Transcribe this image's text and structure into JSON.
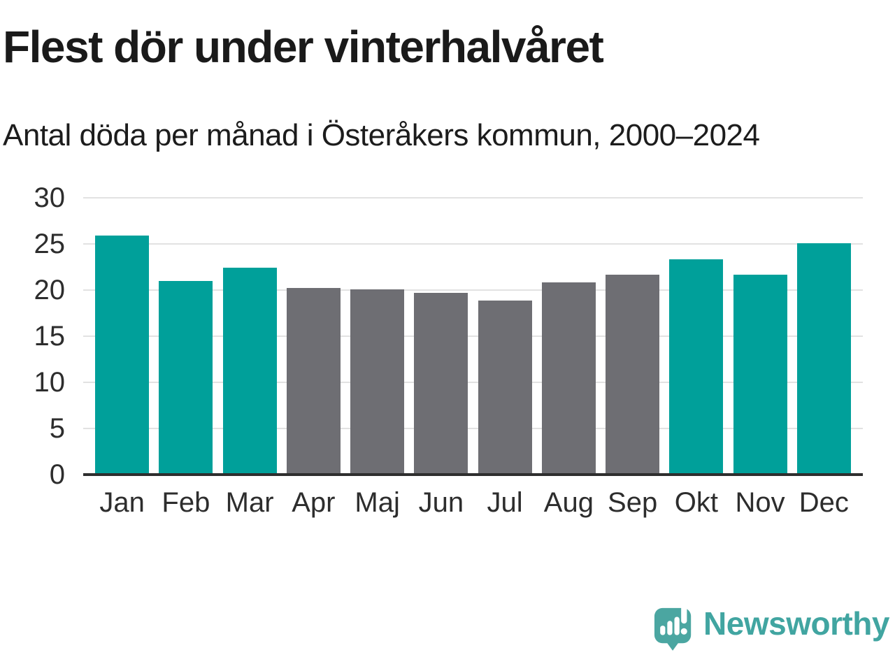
{
  "header": {
    "title": "Flest dör under vinterhalvåret",
    "subtitle": "Antal döda per månad i Österåkers kommun, 2000–2024"
  },
  "chart_data": {
    "type": "bar",
    "title": "Flest dör under vinterhalvåret",
    "subtitle": "Antal döda per månad i Österåkers kommun, 2000–2024",
    "categories": [
      "Jan",
      "Feb",
      "Mar",
      "Apr",
      "Maj",
      "Jun",
      "Jul",
      "Aug",
      "Sep",
      "Okt",
      "Nov",
      "Dec"
    ],
    "values": [
      25.9,
      21.0,
      22.4,
      20.2,
      20.1,
      19.7,
      18.9,
      20.8,
      21.7,
      23.3,
      21.7,
      25.1
    ],
    "bar_color_keys": [
      "winter",
      "winter",
      "winter",
      "summer",
      "summer",
      "summer",
      "summer",
      "summer",
      "summer",
      "winter",
      "winter",
      "winter"
    ],
    "colors": {
      "winter": "#00A09A",
      "summer": "#6E6E73",
      "gridline": "#E2E2E2",
      "axis_line": "#2E2E2E",
      "tick_label": "#2D2D2D"
    },
    "ylim": [
      0,
      30
    ],
    "yticks": [
      0,
      5,
      10,
      15,
      20,
      25,
      30
    ],
    "grid": true,
    "xlabel": "",
    "ylabel": "",
    "legend": "none"
  },
  "footer": {
    "brand": "Newsworthy",
    "brand_color": "#41A5A1",
    "icon": "newsworthy-speech-bubble-bar-chart-icon",
    "icon_color": "#4BA6A1"
  }
}
